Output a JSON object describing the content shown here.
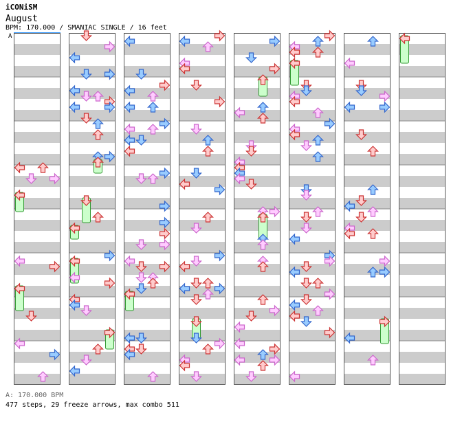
{
  "header": {
    "artist": "iCONiSM",
    "title": "August",
    "info": "BPM: 170.000 / SMANIAC SINGLE / 16 feet",
    "bpm_marker": "A"
  },
  "footer": {
    "bpm_legend": "A: 170.000 BPM",
    "stats": "477 steps, 29 freeze arrows, max combo 511"
  },
  "colors": {
    "stripe_gray": "#cccccc",
    "left_fill": "#ffcccc",
    "left_stroke": "#cc3333",
    "down_fill": "#99ccff",
    "down_stroke": "#3366cc",
    "up_fill": "#ffccff",
    "up_stroke": "#cc66cc",
    "freeze_fill": "#ccffcc",
    "freeze_stroke": "#339933",
    "column_border": "#555555",
    "accent": "#3399ff"
  },
  "chart_data": {
    "type": "step-chart",
    "columns": 8,
    "measures_per_column": 8,
    "panels": [
      "left",
      "down",
      "up",
      "right"
    ],
    "panel_color_cycle": [
      "red",
      "blue",
      "pink"
    ],
    "note_count": 477,
    "freeze_count": 29,
    "max_combo": 511,
    "bpm": 170.0
  }
}
